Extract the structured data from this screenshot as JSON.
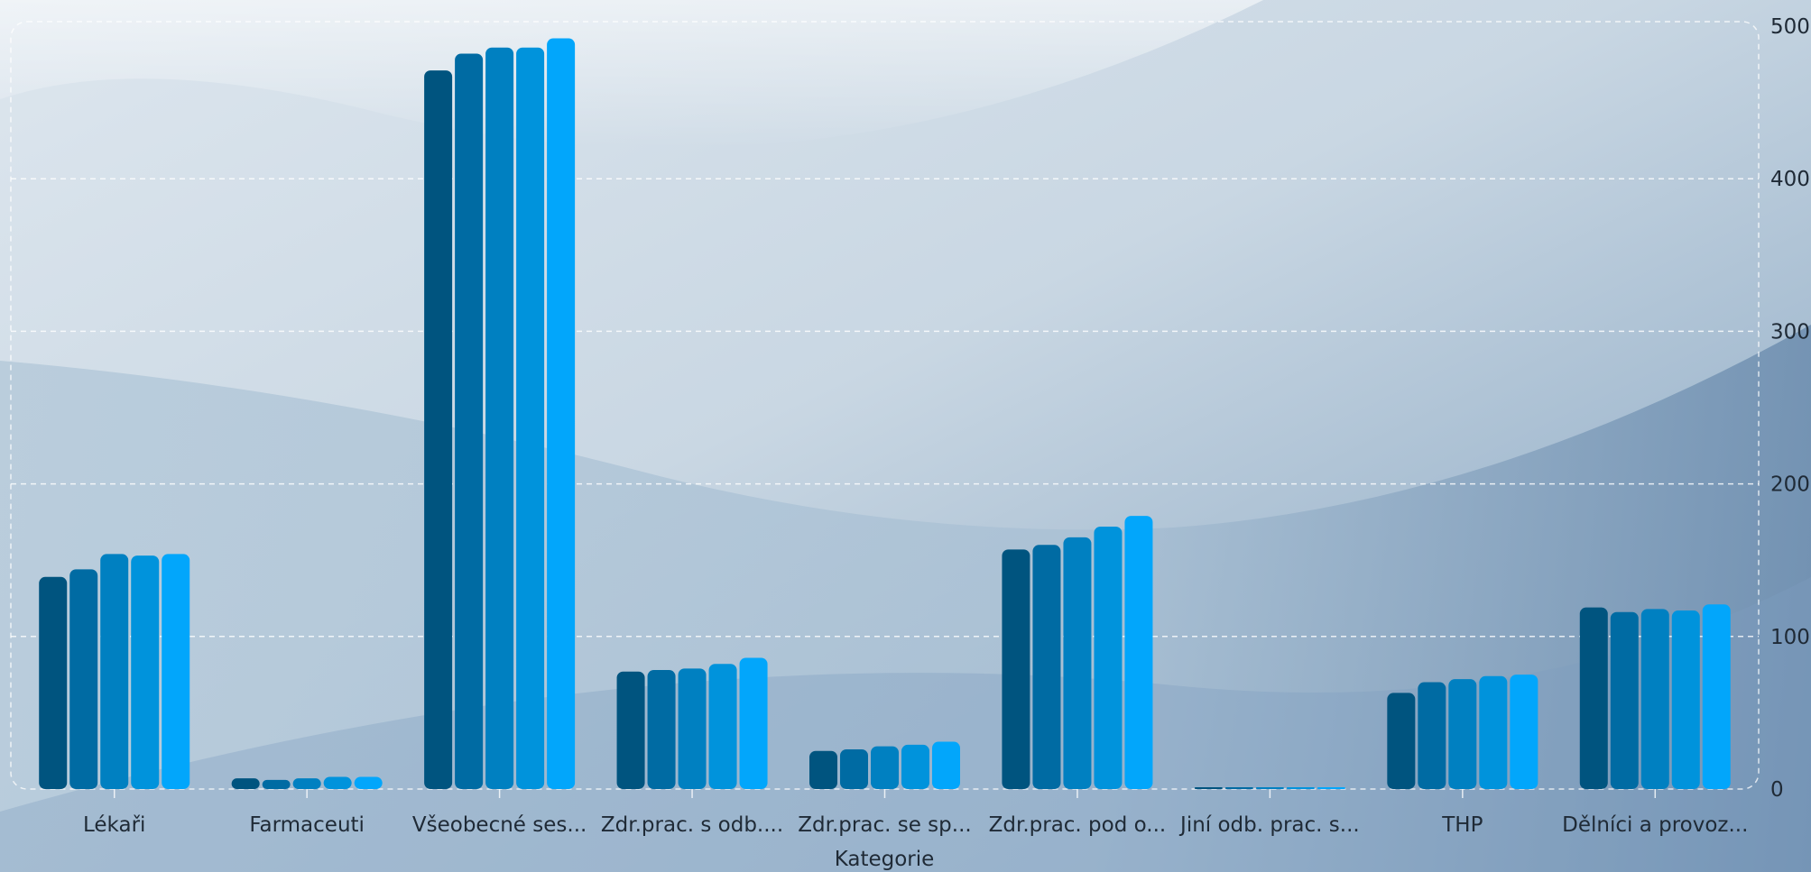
{
  "chart_data": {
    "type": "bar",
    "xlabel": "Kategorie",
    "ylabel": "",
    "title": "",
    "ylim": [
      0,
      500
    ],
    "yticks": [
      0,
      100,
      200,
      300,
      400,
      500
    ],
    "grid": true,
    "legend": "none",
    "categories": [
      "Lékaři",
      "Farmaceuti",
      "Všeobecné ses...",
      "Zdr.prac. s odb....",
      "Zdr.prac. se sp...",
      "Zdr.prac. pod o...",
      "Jiní odb. prac. s...",
      "THP",
      "Dělníci a provoz..."
    ],
    "series": [
      {
        "color": "#00547f",
        "values": [
          139,
          7,
          471,
          77,
          25,
          157,
          0,
          63,
          119
        ]
      },
      {
        "color": "#006ba3",
        "values": [
          144,
          6,
          482,
          78,
          26,
          160,
          0,
          70,
          116
        ]
      },
      {
        "color": "#0080c1",
        "values": [
          154,
          7,
          486,
          79,
          28,
          165,
          0,
          72,
          118
        ]
      },
      {
        "color": "#0093dc",
        "values": [
          153,
          8,
          486,
          82,
          29,
          172,
          0,
          74,
          117
        ]
      },
      {
        "color": "#02a6fb",
        "values": [
          154,
          8,
          492,
          86,
          31,
          179,
          0,
          75,
          121
        ]
      }
    ]
  }
}
